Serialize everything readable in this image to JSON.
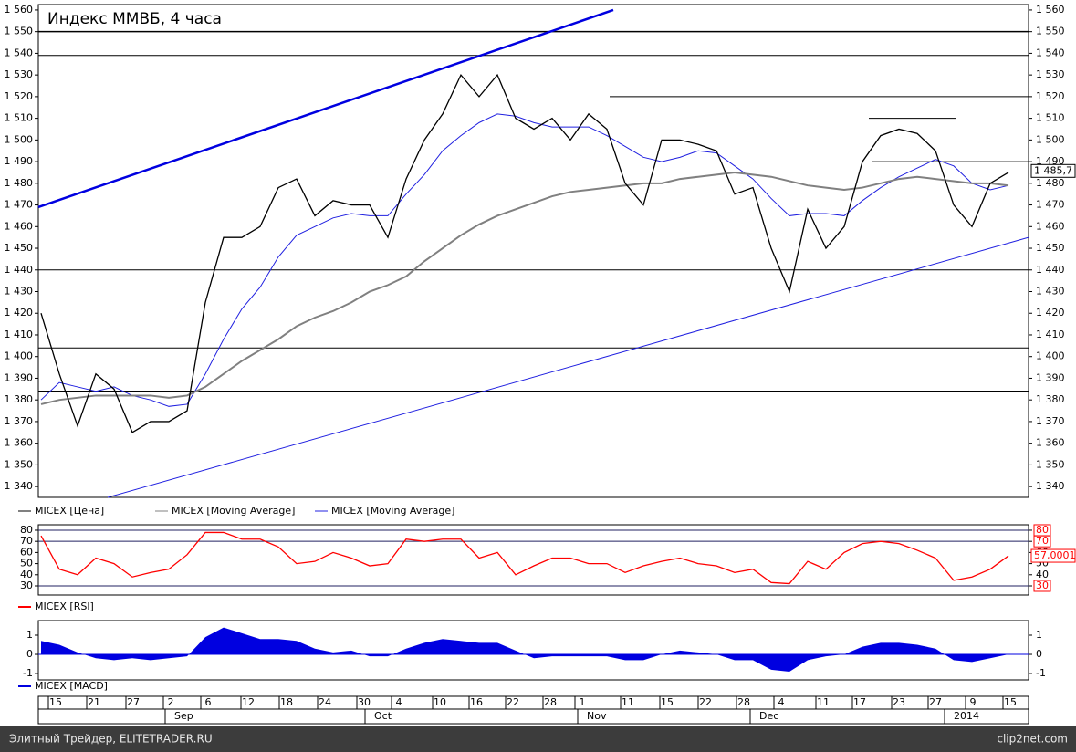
{
  "chart_data": [
    {
      "type": "line",
      "title": "Индекс ММВБ, 4 часа",
      "ylim": [
        1335,
        1562.5
      ],
      "yticks": [
        {
          "value": 1340,
          "label": "1 340"
        },
        {
          "value": 1350,
          "label": "1 350"
        },
        {
          "value": 1360,
          "label": "1 360"
        },
        {
          "value": 1370,
          "label": "1 370"
        },
        {
          "value": 1380,
          "label": "1 380"
        },
        {
          "value": 1390,
          "label": "1 390"
        },
        {
          "value": 1400,
          "label": "1 400"
        },
        {
          "value": 1410,
          "label": "1 410"
        },
        {
          "value": 1420,
          "label": "1 420"
        },
        {
          "value": 1430,
          "label": "1 430"
        },
        {
          "value": 1440,
          "label": "1 440"
        },
        {
          "value": 1450,
          "label": "1 450"
        },
        {
          "value": 1460,
          "label": "1 460"
        },
        {
          "value": 1470,
          "label": "1 470"
        },
        {
          "value": 1480,
          "label": "1 480"
        },
        {
          "value": 1490,
          "label": "1 490"
        },
        {
          "value": 1500,
          "label": "1 500"
        },
        {
          "value": 1510,
          "label": "1 510"
        },
        {
          "value": 1520,
          "label": "1 520"
        },
        {
          "value": 1530,
          "label": "1 530"
        },
        {
          "value": 1540,
          "label": "1 540"
        },
        {
          "value": 1550,
          "label": "1 550"
        },
        {
          "value": 1560,
          "label": "1 560"
        }
      ],
      "series": [
        {
          "name": "MICEX [Цена]",
          "color": "#000000",
          "values": [
            1420,
            1392,
            1368,
            1392,
            1385,
            1365,
            1370,
            1370,
            1375,
            1425,
            1455,
            1455,
            1460,
            1478,
            1482,
            1465,
            1472,
            1470,
            1470,
            1455,
            1482,
            1500,
            1512,
            1530,
            1520,
            1530,
            1510,
            1505,
            1510,
            1500,
            1512,
            1505,
            1480,
            1470,
            1500,
            1500,
            1498,
            1495,
            1475,
            1478,
            1450,
            1430,
            1468,
            1450,
            1460,
            1490,
            1502,
            1505,
            1503,
            1495,
            1470,
            1460,
            1480,
            1485
          ]
        },
        {
          "name": "MICEX [Moving Average]",
          "color": "#808080",
          "values": [
            1378,
            1380,
            1381,
            1382,
            1382,
            1382,
            1382,
            1381,
            1382,
            1386,
            1392,
            1398,
            1403,
            1408,
            1414,
            1418,
            1421,
            1425,
            1430,
            1433,
            1437,
            1444,
            1450,
            1456,
            1461,
            1465,
            1468,
            1471,
            1474,
            1476,
            1477,
            1478,
            1479,
            1480,
            1480,
            1482,
            1483,
            1484,
            1485,
            1484,
            1483,
            1481,
            1479,
            1478,
            1477,
            1478,
            1480,
            1482,
            1483,
            1482,
            1481,
            1480,
            1480,
            1479
          ]
        },
        {
          "name": "MICEX [Moving Average]",
          "color": "#2020e0",
          "values": [
            1380,
            1388,
            1386,
            1384,
            1386,
            1382,
            1380,
            1377,
            1378,
            1392,
            1408,
            1422,
            1432,
            1446,
            1456,
            1460,
            1464,
            1466,
            1465,
            1465,
            1475,
            1484,
            1495,
            1502,
            1508,
            1512,
            1511,
            1508,
            1506,
            1506,
            1506,
            1502,
            1497,
            1492,
            1490,
            1492,
            1495,
            1494,
            1488,
            1482,
            1473,
            1465,
            1466,
            1466,
            1465,
            1472,
            1478,
            1483,
            1487,
            1491,
            1488,
            1480,
            1477,
            1479
          ]
        }
      ],
      "last_value": 1485.7,
      "last_label": "1 485,7",
      "levels": [
        {
          "value": 1550,
          "width": 1.5
        },
        {
          "value": 1539
        },
        {
          "value": 1520,
          "from": 31.15
        },
        {
          "value": 1510,
          "from": 45.35,
          "to": 50.15
        },
        {
          "value": 1490,
          "from": 45.5
        },
        {
          "value": 1440
        },
        {
          "value": 1404
        },
        {
          "value": 1384,
          "width": 1.5
        }
      ],
      "trendlines": [
        {
          "x": [
            -0.15,
            31.35
          ],
          "y": [
            1469,
            1560
          ],
          "color": "#0000e0",
          "width": 2.5
        },
        {
          "x": [
            3.65,
            54.1
          ],
          "y": [
            1335,
            1455
          ],
          "color": "#2020e0",
          "width": 1
        }
      ]
    },
    {
      "type": "line",
      "ylim": [
        21.8,
        84.9
      ],
      "yticks": [
        30,
        40,
        50,
        60,
        70,
        80
      ],
      "series": [
        {
          "name": "MICEX [RSI]",
          "color": "#ff0000",
          "values": [
            75,
            45,
            40,
            55,
            50,
            38,
            42,
            45,
            58,
            78,
            78,
            72,
            72,
            65,
            50,
            52,
            60,
            55,
            48,
            50,
            72,
            70,
            72,
            72,
            55,
            60,
            40,
            48,
            55,
            55,
            50,
            50,
            42,
            48,
            52,
            55,
            50,
            48,
            42,
            45,
            33,
            32,
            52,
            45,
            60,
            68,
            70,
            68,
            62,
            55,
            35,
            38,
            45,
            57.0001
          ]
        }
      ],
      "last_label": "57,0001",
      "levels": [
        {
          "value": 80
        },
        {
          "value": 70
        },
        {
          "value": 30
        }
      ]
    },
    {
      "type": "area",
      "ylim": [
        -1.33,
        1.76
      ],
      "yticks": [
        -1,
        0,
        1
      ],
      "series": [
        {
          "name": "MICEX [MACD]",
          "color": "#0000e0",
          "values": [
            0.7,
            0.5,
            0.1,
            -0.2,
            -0.3,
            -0.2,
            -0.3,
            -0.2,
            -0.1,
            0.9,
            1.4,
            1.1,
            0.8,
            0.8,
            0.7,
            0.3,
            0.1,
            0.2,
            -0.1,
            -0.1,
            0.3,
            0.6,
            0.8,
            0.7,
            0.6,
            0.6,
            0.2,
            -0.2,
            -0.1,
            -0.1,
            -0.1,
            -0.1,
            -0.3,
            -0.3,
            0,
            0.2,
            0.1,
            0,
            -0.3,
            -0.3,
            -0.8,
            -0.9,
            -0.3,
            -0.1,
            0,
            0.4,
            0.6,
            0.6,
            0.5,
            0.3,
            -0.3,
            -0.4,
            -0.2,
            0
          ]
        }
      ]
    }
  ],
  "x_axis": {
    "xlim": [
      -0.15,
      54.1
    ],
    "xticks": [
      {
        "value": 0.8,
        "label": "15"
      },
      {
        "value": 2.9,
        "label": "21"
      },
      {
        "value": 5.05,
        "label": "27"
      },
      {
        "value": 7.1,
        "label": "2"
      },
      {
        "value": 9.15,
        "label": "6"
      },
      {
        "value": 11.35,
        "label": "12"
      },
      {
        "value": 13.45,
        "label": "18"
      },
      {
        "value": 15.55,
        "label": "24"
      },
      {
        "value": 17.7,
        "label": "30"
      },
      {
        "value": 19.6,
        "label": "4"
      },
      {
        "value": 21.85,
        "label": "10"
      },
      {
        "value": 23.85,
        "label": "16"
      },
      {
        "value": 25.85,
        "label": "22"
      },
      {
        "value": 27.9,
        "label": "28"
      },
      {
        "value": 29.65,
        "label": "1"
      },
      {
        "value": 32.15,
        "label": "11"
      },
      {
        "value": 34.3,
        "label": "15"
      },
      {
        "value": 36.4,
        "label": "22"
      },
      {
        "value": 38.5,
        "label": "28"
      },
      {
        "value": 40.55,
        "label": "4"
      },
      {
        "value": 42.85,
        "label": "11"
      },
      {
        "value": 44.85,
        "label": "17"
      },
      {
        "value": 47,
        "label": "23"
      },
      {
        "value": 49,
        "label": "27"
      },
      {
        "value": 51.05,
        "label": "9"
      },
      {
        "value": 53.1,
        "label": "15"
      }
    ],
    "months": [
      {
        "value": 6.8,
        "label": "Sep"
      },
      {
        "value": 17.75,
        "label": "Oct"
      },
      {
        "value": 29.4,
        "label": "Nov"
      },
      {
        "value": 38.85,
        "label": "Dec"
      },
      {
        "value": 49.5,
        "label": "2014"
      }
    ]
  },
  "footer": {
    "left": "Элитный Трейдер, ELITETRADER.RU",
    "right": "clip2net.com"
  }
}
